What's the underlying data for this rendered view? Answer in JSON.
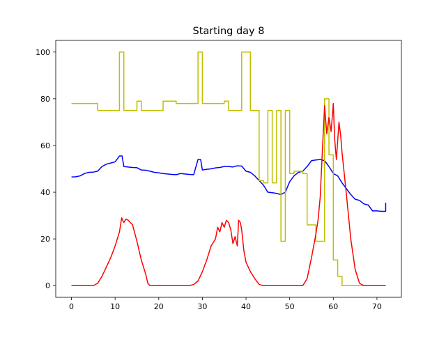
{
  "chart_data": {
    "type": "line",
    "title": "Starting day 8",
    "xlabel": "",
    "ylabel": "",
    "xlim": [
      -3.6,
      75.6
    ],
    "ylim": [
      -5,
      105
    ],
    "x_ticks": [
      0,
      10,
      20,
      30,
      40,
      50,
      60,
      70
    ],
    "y_ticks": [
      0,
      20,
      40,
      60,
      80,
      100
    ],
    "grid": false,
    "legend": "none",
    "series": [
      {
        "color": "#0000ff",
        "points": [
          [
            0,
            46.5
          ],
          [
            1,
            46.6
          ],
          [
            2,
            47.0
          ],
          [
            3,
            48.0
          ],
          [
            4,
            48.5
          ],
          [
            5,
            48.6
          ],
          [
            6,
            49.0
          ],
          [
            7,
            51.0
          ],
          [
            8,
            52.0
          ],
          [
            9,
            52.5
          ],
          [
            10,
            53.0
          ],
          [
            11,
            55.5
          ],
          [
            11.6,
            55.5
          ],
          [
            12,
            51.0
          ],
          [
            13,
            50.8
          ],
          [
            14,
            50.6
          ],
          [
            15,
            50.5
          ],
          [
            16,
            49.5
          ],
          [
            17,
            49.4
          ],
          [
            18,
            49.0
          ],
          [
            19,
            48.5
          ],
          [
            20,
            48.3
          ],
          [
            21,
            48.0
          ],
          [
            22,
            47.8
          ],
          [
            23,
            47.6
          ],
          [
            24,
            47.5
          ],
          [
            25,
            48.0
          ],
          [
            26,
            47.8
          ],
          [
            27,
            47.6
          ],
          [
            28,
            47.5
          ],
          [
            29,
            54.0
          ],
          [
            29.6,
            54.0
          ],
          [
            30,
            49.5
          ],
          [
            31,
            49.8
          ],
          [
            32,
            50.0
          ],
          [
            33,
            50.4
          ],
          [
            34,
            50.6
          ],
          [
            35,
            51.0
          ],
          [
            36,
            51.0
          ],
          [
            37,
            50.8
          ],
          [
            38,
            51.3
          ],
          [
            39,
            51.2
          ],
          [
            40,
            49.0
          ],
          [
            41,
            48.5
          ],
          [
            42,
            47.0
          ],
          [
            43,
            45.0
          ],
          [
            44,
            43.0
          ],
          [
            45,
            40.0
          ],
          [
            46,
            39.8
          ],
          [
            47,
            39.5
          ],
          [
            48,
            39.0
          ],
          [
            49,
            40.0
          ],
          [
            50,
            44.5
          ],
          [
            51,
            47.0
          ],
          [
            52,
            48.5
          ],
          [
            53,
            49.0
          ],
          [
            54,
            51.0
          ],
          [
            55,
            53.5
          ],
          [
            56,
            53.8
          ],
          [
            57,
            54.0
          ],
          [
            58,
            53.5
          ],
          [
            59,
            51.0
          ],
          [
            60,
            48.0
          ],
          [
            61,
            47.0
          ],
          [
            62,
            44.0
          ],
          [
            63,
            41.5
          ],
          [
            64,
            39.0
          ],
          [
            65,
            37.0
          ],
          [
            66,
            36.5
          ],
          [
            67,
            35.0
          ],
          [
            68,
            34.5
          ],
          [
            69,
            32.0
          ],
          [
            70,
            32.0
          ],
          [
            71,
            31.8
          ],
          [
            72,
            31.8
          ],
          [
            72,
            35.5
          ]
        ]
      },
      {
        "color": "#bfbf00",
        "points": [
          [
            0,
            78
          ],
          [
            6,
            78
          ],
          [
            6,
            75
          ],
          [
            11,
            75
          ],
          [
            11,
            100
          ],
          [
            12,
            100
          ],
          [
            12,
            75
          ],
          [
            15,
            75
          ],
          [
            15,
            79
          ],
          [
            16,
            79
          ],
          [
            16,
            75
          ],
          [
            21,
            75
          ],
          [
            21,
            79
          ],
          [
            24,
            79
          ],
          [
            24,
            78
          ],
          [
            29,
            78
          ],
          [
            29,
            100
          ],
          [
            30,
            100
          ],
          [
            30,
            78
          ],
          [
            35,
            78
          ],
          [
            35,
            79
          ],
          [
            36,
            79
          ],
          [
            36,
            75
          ],
          [
            39,
            75
          ],
          [
            39,
            100
          ],
          [
            41,
            100
          ],
          [
            41,
            75
          ],
          [
            43,
            75
          ],
          [
            43,
            45
          ],
          [
            44,
            45
          ],
          [
            44,
            44
          ],
          [
            45,
            44
          ],
          [
            45,
            75
          ],
          [
            46,
            75
          ],
          [
            46,
            44
          ],
          [
            47,
            44
          ],
          [
            47,
            75
          ],
          [
            48,
            75
          ],
          [
            48,
            19
          ],
          [
            49,
            19
          ],
          [
            49,
            75
          ],
          [
            50,
            75
          ],
          [
            50,
            48
          ],
          [
            51,
            48
          ],
          [
            51,
            49
          ],
          [
            53,
            49
          ],
          [
            53,
            48
          ],
          [
            54,
            48
          ],
          [
            54,
            26
          ],
          [
            55,
            26
          ],
          [
            55,
            26
          ],
          [
            56,
            26
          ],
          [
            56,
            19
          ],
          [
            58,
            19
          ],
          [
            58,
            80
          ],
          [
            59,
            80
          ],
          [
            59,
            56
          ],
          [
            60,
            56
          ],
          [
            60,
            11
          ],
          [
            61,
            11
          ],
          [
            61,
            4
          ],
          [
            62,
            4
          ],
          [
            62,
            0
          ],
          [
            72,
            0
          ]
        ]
      },
      {
        "color": "#ff0000",
        "points": [
          [
            0,
            0
          ],
          [
            5,
            0
          ],
          [
            6,
            1
          ],
          [
            7,
            4
          ],
          [
            8,
            8
          ],
          [
            9,
            12
          ],
          [
            10,
            17
          ],
          [
            11,
            23
          ],
          [
            11.5,
            29
          ],
          [
            12,
            27
          ],
          [
            12.5,
            28.5
          ],
          [
            13,
            28
          ],
          [
            14,
            26
          ],
          [
            15,
            19
          ],
          [
            16,
            11
          ],
          [
            17,
            5
          ],
          [
            17.5,
            1
          ],
          [
            18,
            0
          ],
          [
            27,
            0
          ],
          [
            28,
            0.5
          ],
          [
            29,
            2
          ],
          [
            30,
            6
          ],
          [
            31,
            11
          ],
          [
            32,
            17
          ],
          [
            33,
            20
          ],
          [
            33.5,
            25
          ],
          [
            34,
            23
          ],
          [
            34.5,
            27
          ],
          [
            35,
            25
          ],
          [
            35.5,
            28
          ],
          [
            36,
            27
          ],
          [
            36.5,
            24
          ],
          [
            37,
            18
          ],
          [
            37.5,
            21
          ],
          [
            38,
            17
          ],
          [
            38.3,
            28
          ],
          [
            38.7,
            27
          ],
          [
            39,
            24
          ],
          [
            39.5,
            15
          ],
          [
            40,
            10
          ],
          [
            41,
            6
          ],
          [
            42,
            3
          ],
          [
            43,
            0.5
          ],
          [
            44,
            0
          ],
          [
            53,
            0
          ],
          [
            54,
            3
          ],
          [
            55,
            12
          ],
          [
            56,
            22
          ],
          [
            56.5,
            28
          ],
          [
            57,
            38
          ],
          [
            57.5,
            58
          ],
          [
            58,
            77
          ],
          [
            58.5,
            65
          ],
          [
            59,
            72
          ],
          [
            59.5,
            66
          ],
          [
            60,
            78
          ],
          [
            60.3,
            63
          ],
          [
            60.7,
            54
          ],
          [
            61,
            62
          ],
          [
            61.3,
            70
          ],
          [
            61.7,
            64
          ],
          [
            62,
            57
          ],
          [
            63,
            39
          ],
          [
            64,
            20
          ],
          [
            65,
            7
          ],
          [
            66,
            1
          ],
          [
            67,
            0
          ],
          [
            72,
            0
          ]
        ]
      }
    ]
  }
}
